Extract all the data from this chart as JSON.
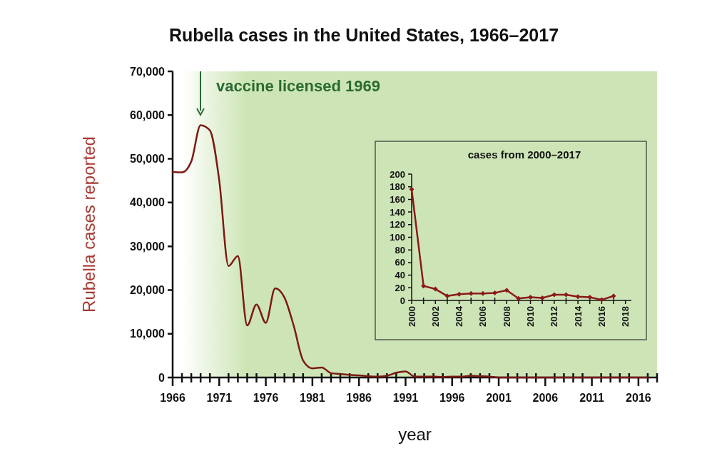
{
  "chart_data": [
    {
      "type": "line",
      "title": "Rubella cases in the United States, 1966–2017",
      "xlabel": "year",
      "ylabel": "Rubella cases reported",
      "x": [
        1966,
        1967,
        1968,
        1969,
        1970,
        1971,
        1972,
        1973,
        1974,
        1975,
        1976,
        1977,
        1978,
        1979,
        1980,
        1981,
        1982,
        1983,
        1984,
        1985,
        1986,
        1987,
        1988,
        1989,
        1990,
        1991,
        1992,
        1993,
        1994,
        1995,
        1996,
        1997,
        1998,
        1999,
        2000,
        2001,
        2002,
        2003,
        2004,
        2005,
        2006,
        2007,
        2008,
        2009,
        2010,
        2011,
        2012,
        2013,
        2014,
        2015,
        2016,
        2017
      ],
      "series": [
        {
          "color": "#7b1a14",
          "values": [
            47000,
            46900,
            49400,
            57700,
            56500,
            45100,
            25500,
            27800,
            11900,
            16700,
            12500,
            20400,
            18300,
            11800,
            3900,
            2100,
            2300,
            1000,
            800,
            600,
            500,
            300,
            200,
            400,
            1100,
            1400,
            200,
            200,
            200,
            100,
            200,
            200,
            400,
            300,
            200,
            0,
            0,
            0,
            0,
            0,
            0,
            0,
            0,
            0,
            0,
            0,
            0,
            0,
            0,
            0,
            0,
            0
          ]
        }
      ],
      "xlim": [
        1966,
        2018
      ],
      "xticks": [
        1966,
        {
          "value": 1967,
          "label": null
        },
        {
          "value": 1968,
          "label": null
        },
        {
          "value": 1969,
          "label": null
        },
        {
          "value": 1970,
          "label": null
        },
        1971,
        {
          "value": 1972,
          "label": null
        },
        {
          "value": 1973,
          "label": null
        },
        {
          "value": 1974,
          "label": null
        },
        {
          "value": 1975,
          "label": null
        },
        1976,
        {
          "value": 1977,
          "label": null
        },
        {
          "value": 1978,
          "label": null
        },
        {
          "value": 1979,
          "label": null
        },
        {
          "value": 1980,
          "label": null
        },
        1981,
        {
          "value": 1982,
          "label": null
        },
        {
          "value": 1983,
          "label": null
        },
        {
          "value": 1984,
          "label": null
        },
        {
          "value": 1985,
          "label": null
        },
        1986,
        {
          "value": 1987,
          "label": null
        },
        {
          "value": 1988,
          "label": null
        },
        {
          "value": 1989,
          "label": null
        },
        {
          "value": 1990,
          "label": null
        },
        1991,
        {
          "value": 1992,
          "label": null
        },
        {
          "value": 1993,
          "label": null
        },
        {
          "value": 1994,
          "label": null
        },
        {
          "value": 1995,
          "label": null
        },
        1996,
        {
          "value": 1997,
          "label": null
        },
        {
          "value": 1998,
          "label": null
        },
        {
          "value": 1999,
          "label": null
        },
        {
          "value": 2000,
          "label": null
        },
        2001,
        {
          "value": 2002,
          "label": null
        },
        {
          "value": 2003,
          "label": null
        },
        {
          "value": 2004,
          "label": null
        },
        {
          "value": 2005,
          "label": null
        },
        2006,
        {
          "value": 2007,
          "label": null
        },
        {
          "value": 2008,
          "label": null
        },
        {
          "value": 2009,
          "label": null
        },
        {
          "value": 2010,
          "label": null
        },
        2011,
        {
          "value": 2012,
          "label": null
        },
        {
          "value": 2013,
          "label": null
        },
        {
          "value": 2014,
          "label": null
        },
        {
          "value": 2015,
          "label": null
        },
        2016,
        {
          "value": 2017,
          "label": null
        },
        {
          "value": 2018,
          "label": null
        }
      ],
      "ylim": [
        0,
        70000
      ],
      "yticks": [
        {
          "value": 0,
          "label": "0"
        },
        {
          "value": 10000,
          "label": "10,000"
        },
        {
          "value": 20000,
          "label": "20,000"
        },
        {
          "value": 30000,
          "label": "30,000"
        },
        {
          "value": 40000,
          "label": "40,000"
        },
        {
          "value": 50000,
          "label": "50,000"
        },
        {
          "value": 60000,
          "label": "60,000"
        },
        {
          "value": 70000,
          "label": "70,000"
        }
      ],
      "bands": [
        {
          "axis": "x",
          "from": 1967,
          "to": 2018,
          "color": "#cde5b6"
        }
      ],
      "annotations": [
        "vaccine licensed 1969"
      ],
      "grid": false,
      "line_style": "solid",
      "marker": "none"
    },
    {
      "type": "line",
      "title": "cases from 2000–2017",
      "x": [
        2000,
        2001,
        2002,
        2003,
        2004,
        2005,
        2006,
        2007,
        2008,
        2009,
        2010,
        2011,
        2012,
        2013,
        2014,
        2015,
        2016,
        2017
      ],
      "series": [
        {
          "color": "#8b1a1a",
          "values": [
            176,
            23,
            18,
            7,
            10,
            11,
            11,
            12,
            16,
            3,
            5,
            4,
            9,
            9,
            6,
            5,
            1,
            7
          ]
        }
      ],
      "xlim": [
        2000,
        2018.5
      ],
      "xticks": [
        2000,
        {
          "value": 2001,
          "label": null
        },
        2002,
        {
          "value": 2003,
          "label": null
        },
        2004,
        {
          "value": 2005,
          "label": null
        },
        2006,
        {
          "value": 2007,
          "label": null
        },
        2008,
        {
          "value": 2009,
          "label": null
        },
        2010,
        {
          "value": 2011,
          "label": null
        },
        2012,
        {
          "value": 2013,
          "label": null
        },
        2014,
        {
          "value": 2015,
          "label": null
        },
        2016,
        {
          "value": 2017,
          "label": null
        },
        2018
      ],
      "ylim": [
        0,
        200
      ],
      "yticks": [
        0,
        20,
        40,
        60,
        80,
        100,
        120,
        140,
        160,
        180,
        200
      ],
      "grid": false,
      "line_style": "solid",
      "marker": "diamond"
    }
  ]
}
